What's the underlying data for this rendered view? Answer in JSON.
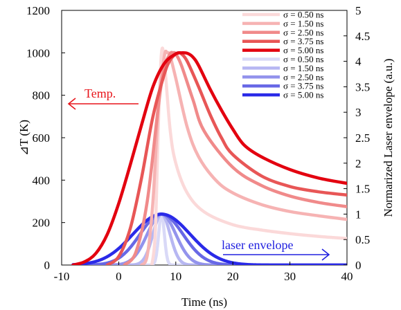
{
  "chart_data": {
    "type": "line",
    "xlabel": "Time (ns)",
    "ylabel_left": "⊿T (K)",
    "ylabel_right": "Normarized Laser envelope (a.u.)",
    "xlim": [
      -10,
      40
    ],
    "ylim_left": [
      0,
      1200
    ],
    "ylim_right": [
      0,
      5
    ],
    "xticks": [
      -10,
      0,
      10,
      20,
      30,
      40
    ],
    "yticks_left": [
      0,
      200,
      400,
      600,
      800,
      1000,
      1200
    ],
    "yticks_right": [
      0,
      0.5,
      1,
      1.5,
      2,
      2.5,
      3,
      3.5,
      4,
      4.5,
      5
    ],
    "grid": false,
    "legend_position": "top-right",
    "annotations": [
      {
        "text": "Temp.",
        "color": "#e8141a",
        "arrow": "left"
      },
      {
        "text": "laser envelope",
        "color": "#2020e0",
        "arrow": "right"
      }
    ],
    "temperature_series": [
      {
        "name": "σ = 0.50 ns",
        "color": "#fbd9d9",
        "axis": "left",
        "x": [
          5.8,
          6.4,
          7.0,
          7.5,
          8.0,
          9.0,
          10.0,
          12.0,
          15.0,
          20.0,
          25.0,
          30.0,
          35.0,
          40.0
        ],
        "y": [
          0,
          150,
          700,
          1000,
          960,
          640,
          480,
          340,
          250,
          190,
          165,
          148,
          135,
          125
        ]
      },
      {
        "name": "σ = 1.50 ns",
        "color": "#f6b3b3",
        "axis": "left",
        "x": [
          4.0,
          5.0,
          6.0,
          7.0,
          8.0,
          8.5,
          9.0,
          10.0,
          12.0,
          14.0,
          17.0,
          20.0,
          25.0,
          30.0,
          35.0,
          40.0
        ],
        "y": [
          0,
          45,
          300,
          760,
          985,
          1000,
          985,
          880,
          650,
          510,
          400,
          340,
          285,
          252,
          232,
          215
        ]
      },
      {
        "name": "σ = 2.50 ns",
        "color": "#f08a8a",
        "axis": "left",
        "x": [
          1.0,
          3.0,
          5.0,
          7.0,
          8.0,
          9.0,
          9.5,
          10.0,
          11.0,
          13.0,
          15.0,
          20.0,
          25.0,
          30.0,
          35.0,
          40.0
        ],
        "y": [
          0,
          60,
          300,
          760,
          930,
          995,
          1000,
          995,
          940,
          780,
          630,
          460,
          375,
          325,
          295,
          275
        ]
      },
      {
        "name": "σ = 3.75 ns",
        "color": "#e85656",
        "axis": "left",
        "x": [
          -2.0,
          0.0,
          2.0,
          4.0,
          6.0,
          8.0,
          9.0,
          10.0,
          10.5,
          11.0,
          12.0,
          14.0,
          16.0,
          18.0,
          20.0,
          25.0,
          30.0,
          35.0,
          40.0
        ],
        "y": [
          0,
          40,
          170,
          410,
          700,
          900,
          965,
          995,
          1000,
          995,
          960,
          840,
          710,
          600,
          520,
          420,
          370,
          345,
          330
        ]
      },
      {
        "name": "σ = 5.00 ns",
        "color": "#e3000f",
        "axis": "left",
        "x": [
          -8.0,
          -6.0,
          -4.0,
          -2.0,
          0.0,
          2.0,
          4.0,
          6.0,
          8.0,
          10.0,
          11.0,
          12.0,
          13.0,
          14.0,
          16.0,
          18.0,
          20.0,
          22.0,
          25.0,
          30.0,
          35.0,
          40.0
        ],
        "y": [
          0,
          15,
          55,
          145,
          290,
          470,
          660,
          840,
          950,
          995,
          1000,
          998,
          980,
          940,
          830,
          730,
          640,
          565,
          510,
          450,
          410,
          385
        ]
      }
    ],
    "laser_series": [
      {
        "name": "σ = 0.50 ns",
        "color": "#d9d9f7",
        "axis": "right",
        "center": 7.5,
        "sigma": 0.5,
        "peak": 1.0
      },
      {
        "name": "σ = 1.50 ns",
        "color": "#b7b7f2",
        "axis": "right",
        "center": 7.5,
        "sigma": 1.5,
        "peak": 1.0
      },
      {
        "name": "σ = 2.50 ns",
        "color": "#9393ec",
        "axis": "right",
        "center": 7.5,
        "sigma": 2.5,
        "peak": 1.0
      },
      {
        "name": "σ = 3.75 ns",
        "color": "#6868e6",
        "axis": "right",
        "center": 7.5,
        "sigma": 3.75,
        "peak": 1.0
      },
      {
        "name": "σ = 5.00 ns",
        "color": "#2a2ae8",
        "axis": "right",
        "center": 7.5,
        "sigma": 5.0,
        "peak": 1.0
      }
    ]
  }
}
